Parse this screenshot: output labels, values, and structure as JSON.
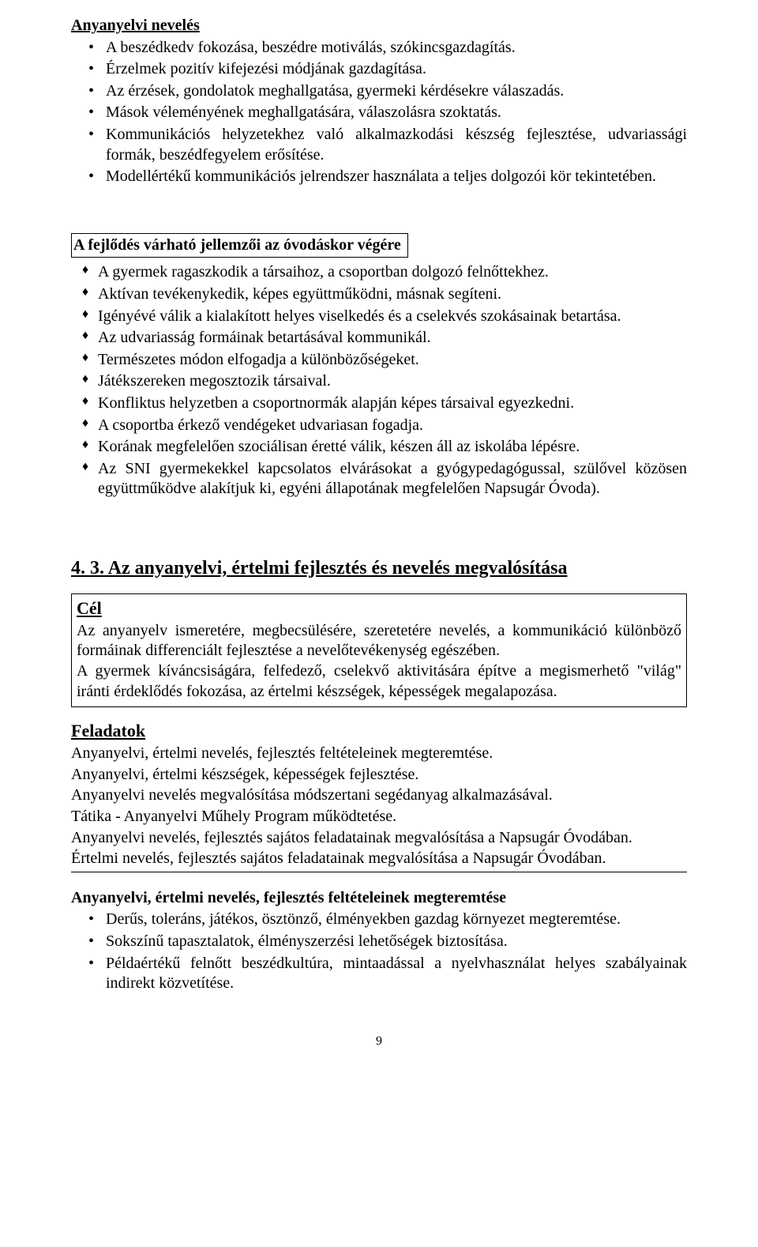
{
  "section1": {
    "title": "Anyanyelvi nevelés",
    "items": [
      "A beszédkedv fokozása, beszédre motiválás, szókincsgazdagítás.",
      "Érzelmek pozitív kifejezési módjának gazdagítása.",
      "Az érzések, gondolatok meghallgatása, gyermeki kérdésekre válaszadás.",
      "Mások véleményének meghallgatására, válaszolásra szoktatás.",
      "Kommunikációs helyzetekhez való alkalmazkodási készség fejlesztése, udvariassági formák, beszédfegyelem erősítése.",
      "Modellértékű kommunikációs jelrendszer használata a teljes dolgozói kör tekintetében."
    ]
  },
  "section2": {
    "boxTitle": "A fejlődés várható jellemzői az óvodáskor végére",
    "items": [
      "A gyermek ragaszkodik a társaihoz, a csoportban dolgozó felnőttekhez.",
      "Aktívan tevékenykedik, képes együttműködni, másnak segíteni.",
      "Igényévé válik a kialakított helyes viselkedés és a cselekvés szokásainak betartása.",
      "Az udvariasság formáinak betartásával kommunikál.",
      "Természetes módon elfogadja a különbözőségeket.",
      "Játékszereken megosztozik társaival.",
      "Konfliktus helyzetben a csoportnormák alapján képes társaival egyezkedni.",
      "A csoportba érkező vendégeket udvariasan fogadja.",
      "Korának megfelelően szociálisan éretté válik, készen áll az iskolába lépésre.",
      "Az SNI gyermekekkel kapcsolatos elvárásokat a gyógypedagógussal, szülővel közösen együttműködve alakítjuk ki, egyéni állapotának megfelelően Napsugár Óvoda)."
    ]
  },
  "mainHeading": "4. 3. Az anyanyelvi, értelmi fejlesztés és nevelés megvalósítása",
  "cel": {
    "title": "Cél",
    "p1": "Az anyanyelv ismeretére, megbecsülésére, szeretetére nevelés, a kommunikáció különböző formáinak differenciált fejlesztése a nevelőtevékenység egészében.",
    "p2": "A gyermek kíváncsiságára, felfedező, cselekvő aktivitására építve a megismerhető \"világ\" iránti érdeklődés fokozása, az értelmi készségek, képességek megalapozása."
  },
  "feladatok": {
    "title": "Feladatok",
    "lines": [
      "Anyanyelvi, értelmi nevelés, fejlesztés feltételeinek megteremtése.",
      "Anyanyelvi, értelmi készségek, képességek fejlesztése.",
      "Anyanyelvi nevelés megvalósítása módszertani segédanyag alkalmazásával.",
      "Tátika - Anyanyelvi Műhely Program működtetése.",
      "Anyanyelvi nevelés, fejlesztés sajátos feladatainak megvalósítása a Napsugár Óvodában.",
      "Értelmi nevelés, fejlesztés sajátos feladatainak megvalósítása a Napsugár Óvodában."
    ]
  },
  "section3": {
    "title": "Anyanyelvi, értelmi nevelés, fejlesztés feltételeinek megteremtése",
    "items": [
      "Derűs, toleráns, játékos, ösztönző, élményekben gazdag környezet megteremtése.",
      "Sokszínű tapasztalatok, élményszerzési lehetőségek biztosítása.",
      "Példaértékű felnőtt beszédkultúra, mintaadással a nyelvhasználat helyes szabályainak indirekt közvetítése."
    ]
  },
  "pageNumber": "9"
}
